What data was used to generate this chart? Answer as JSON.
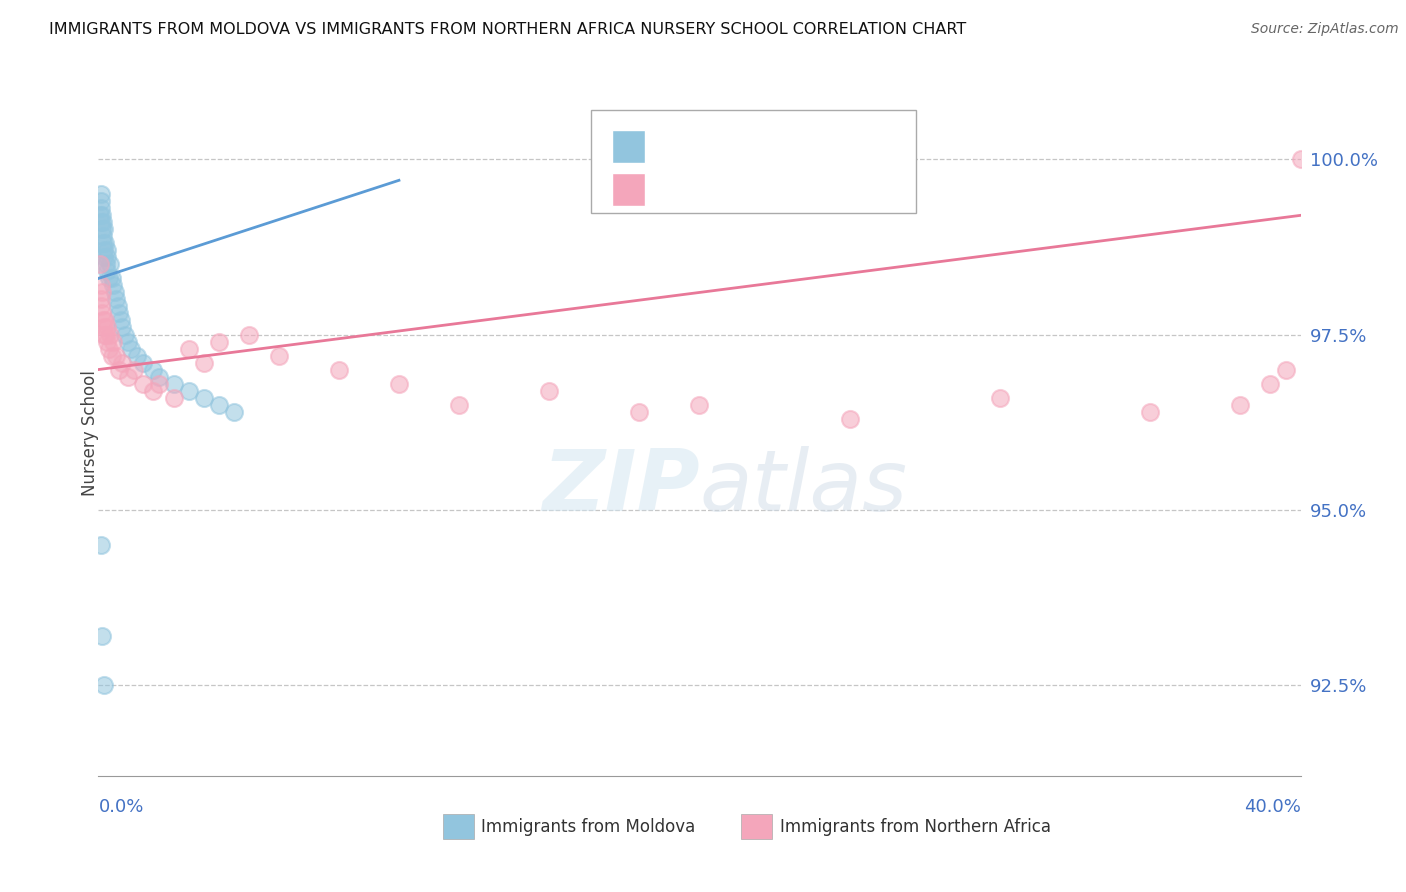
{
  "title": "IMMIGRANTS FROM MOLDOVA VS IMMIGRANTS FROM NORTHERN AFRICA NURSERY SCHOOL CORRELATION CHART",
  "source": "Source: ZipAtlas.com",
  "ylabel": "Nursery School",
  "yticks": [
    92.5,
    95.0,
    97.5,
    100.0
  ],
  "ytick_labels": [
    "92.5%",
    "95.0%",
    "97.5%",
    "100.0%"
  ],
  "xlim": [
    0.0,
    40.0
  ],
  "ylim": [
    91.2,
    101.0
  ],
  "color_moldova": "#92c5de",
  "color_n_africa": "#f4a6bb",
  "color_moldova_line": "#5b9bd5",
  "color_n_africa_line": "#e87898",
  "color_axis_labels": "#4472c4",
  "moldova_x": [
    0.05,
    0.07,
    0.08,
    0.1,
    0.1,
    0.12,
    0.13,
    0.14,
    0.15,
    0.15,
    0.18,
    0.2,
    0.2,
    0.22,
    0.25,
    0.28,
    0.3,
    0.3,
    0.35,
    0.4,
    0.45,
    0.5,
    0.55,
    0.6,
    0.65,
    0.7,
    0.75,
    0.8,
    0.9,
    1.0,
    1.1,
    1.3,
    1.5,
    1.8,
    2.0,
    2.5,
    3.0,
    3.5,
    4.0,
    4.5,
    0.08,
    0.12,
    0.18
  ],
  "moldova_y": [
    99.2,
    99.4,
    99.3,
    99.1,
    99.5,
    99.0,
    99.2,
    98.9,
    99.1,
    98.8,
    98.7,
    99.0,
    98.6,
    98.8,
    98.5,
    98.7,
    98.4,
    98.6,
    98.3,
    98.5,
    98.3,
    98.2,
    98.1,
    98.0,
    97.9,
    97.8,
    97.7,
    97.6,
    97.5,
    97.4,
    97.3,
    97.2,
    97.1,
    97.0,
    96.9,
    96.8,
    96.7,
    96.6,
    96.5,
    96.4,
    94.5,
    93.2,
    92.5
  ],
  "n_africa_x": [
    0.05,
    0.07,
    0.09,
    0.1,
    0.12,
    0.13,
    0.15,
    0.17,
    0.2,
    0.22,
    0.25,
    0.28,
    0.3,
    0.35,
    0.4,
    0.45,
    0.5,
    0.6,
    0.7,
    0.8,
    1.0,
    1.2,
    1.5,
    1.8,
    2.0,
    2.5,
    3.0,
    3.5,
    4.0,
    5.0,
    6.0,
    8.0,
    10.0,
    12.0,
    15.0,
    18.0,
    20.0,
    25.0,
    30.0,
    35.0,
    38.0,
    39.0,
    39.5,
    40.0
  ],
  "n_africa_y": [
    98.5,
    98.2,
    98.0,
    97.9,
    98.1,
    97.8,
    97.7,
    97.6,
    97.5,
    97.7,
    97.5,
    97.4,
    97.6,
    97.3,
    97.5,
    97.2,
    97.4,
    97.2,
    97.0,
    97.1,
    96.9,
    97.0,
    96.8,
    96.7,
    96.8,
    96.6,
    97.3,
    97.1,
    97.4,
    97.5,
    97.2,
    97.0,
    96.8,
    96.5,
    96.7,
    96.4,
    96.5,
    96.3,
    96.6,
    96.4,
    96.5,
    96.8,
    97.0,
    100.0
  ],
  "moldova_line_x": [
    0.0,
    10.0
  ],
  "moldova_line_y": [
    98.3,
    99.7
  ],
  "n_africa_line_x": [
    0.0,
    40.0
  ],
  "n_africa_line_y": [
    97.0,
    99.2
  ],
  "watermark": "ZIPatlas",
  "background_color": "#ffffff"
}
